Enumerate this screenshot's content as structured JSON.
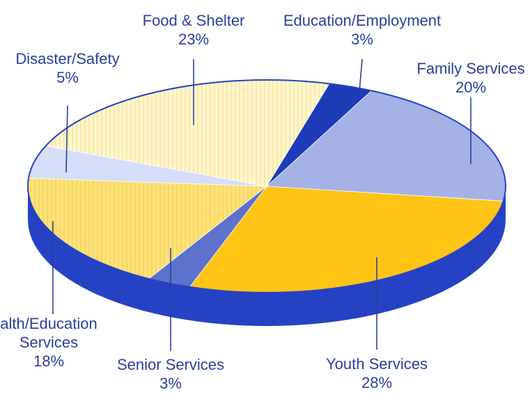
{
  "chart_data": {
    "type": "pie",
    "title": "",
    "slices": [
      {
        "label": "Family Services",
        "percent_label": "20%",
        "value": 20,
        "color": "#a4b2e6",
        "pattern": "none"
      },
      {
        "label": "Youth Services",
        "percent_label": "28%",
        "value": 28,
        "color": "#ffc414",
        "pattern": "none"
      },
      {
        "label": "Senior Services",
        "percent_label": "3%",
        "value": 3,
        "color": "#5c72cc",
        "pattern": "none"
      },
      {
        "label": "Health/Education Services",
        "label_lines": [
          "alth/Education",
          "Services"
        ],
        "percent_label": "18%",
        "value": 18,
        "color": "#fde27a",
        "pattern": "stripes"
      },
      {
        "label": "Disaster/Safety",
        "percent_label": "5%",
        "value": 5,
        "color": "#d6defa",
        "pattern": "none"
      },
      {
        "label": "Food & Shelter",
        "percent_label": "23%",
        "value": 23,
        "color": "#fff6cc",
        "pattern": "stripes"
      },
      {
        "label": "Education/Employment",
        "percent_label": "3%",
        "value": 3,
        "color": "#1e3bb8",
        "pattern": "none"
      }
    ],
    "rim_color": "#2542c4",
    "outline_color": "#2542c4"
  }
}
